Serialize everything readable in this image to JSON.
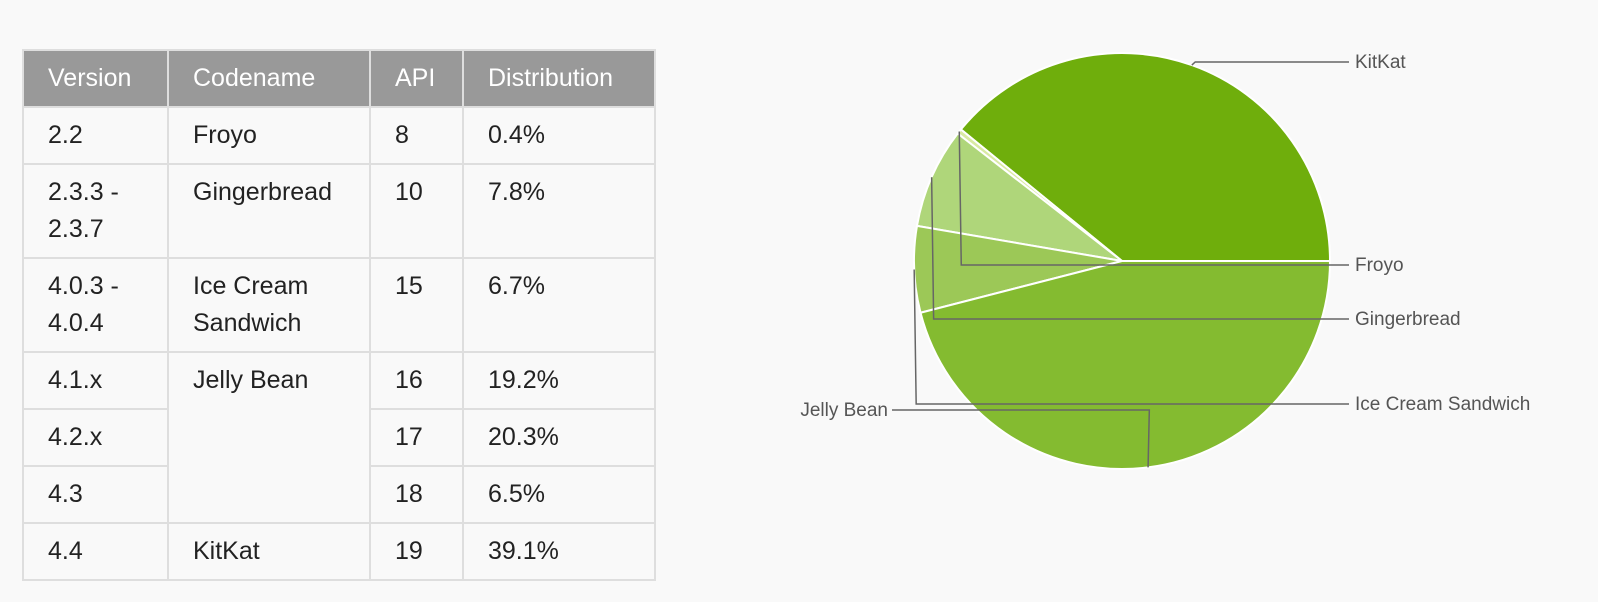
{
  "table": {
    "headers": [
      "Version",
      "Codename",
      "API",
      "Distribution"
    ],
    "rows": [
      {
        "version": "2.2",
        "codename": "Froyo",
        "api": "8",
        "distribution": "0.4%"
      },
      {
        "version": "2.3.3 -\n2.3.7",
        "codename": "Gingerbread",
        "api": "10",
        "distribution": "7.8%"
      },
      {
        "version": "4.0.3 -\n4.0.4",
        "codename": "Ice Cream\nSandwich",
        "api": "15",
        "distribution": "6.7%"
      },
      {
        "version": "4.1.x",
        "codename": "Jelly Bean",
        "api": "16",
        "distribution": "19.2%"
      },
      {
        "version": "4.2.x",
        "codename": "",
        "api": "17",
        "distribution": "20.3%"
      },
      {
        "version": "4.3",
        "codename": "",
        "api": "18",
        "distribution": "6.5%"
      },
      {
        "version": "4.4",
        "codename": "KitKat",
        "api": "19",
        "distribution": "39.1%"
      }
    ]
  },
  "colors": {
    "header_bg": "#999999",
    "link": "#258aaf",
    "slice_kitkat": "#6fae0c",
    "slice_froyo": "#d9eaa3",
    "slice_gingerbread": "#afd67a",
    "slice_ics": "#9cc857",
    "slice_jellybean": "#84bb30"
  },
  "chart_data": {
    "type": "pie",
    "slices": [
      {
        "label": "KitKat",
        "value": 39.1,
        "color": "#6fae0c"
      },
      {
        "label": "Froyo",
        "value": 0.4,
        "color": "#d9eaa3"
      },
      {
        "label": "Gingerbread",
        "value": 7.8,
        "color": "#afd67a"
      },
      {
        "label": "Ice Cream Sandwich",
        "value": 6.7,
        "color": "#9cc857"
      },
      {
        "label": "Jelly Bean",
        "value": 46.0,
        "color": "#84bb30"
      }
    ],
    "title": "",
    "start": "3 o'clock",
    "direction": "counterclockwise from KitKat"
  }
}
